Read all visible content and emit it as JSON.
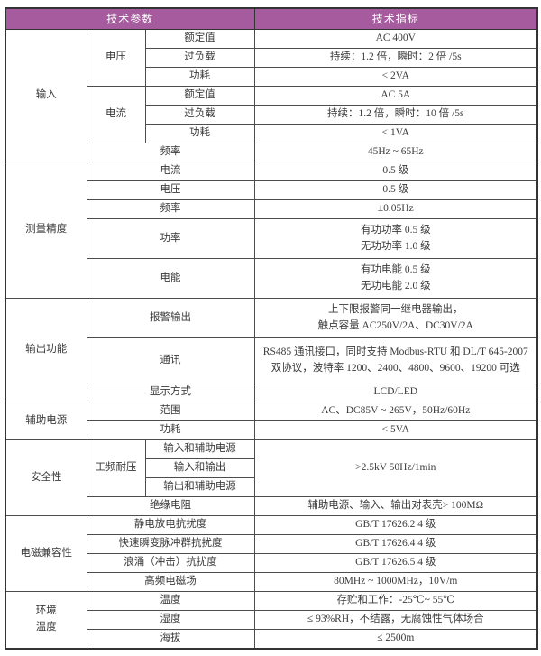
{
  "header": {
    "left": "技术参数",
    "right": "技术指标"
  },
  "colors": {
    "header_bg": "#a55b9e",
    "header_text": "#ffffff",
    "body_text": "#3a3a3a",
    "border": "#4d4d4d"
  },
  "sections": [
    {
      "label": "输入",
      "groups": [
        {
          "label": "电压",
          "rows": [
            {
              "param": "额定值",
              "value": "AC 400V"
            },
            {
              "param": "过负载",
              "value": "持续：1.2 倍，瞬时：2 倍 /5s"
            },
            {
              "param": "功耗",
              "value": "< 2VA"
            }
          ]
        },
        {
          "label": "电流",
          "rows": [
            {
              "param": "额定值",
              "value": "AC 5A"
            },
            {
              "param": "过负载",
              "value": "持续：1.2 倍，瞬时：10 倍 /5s"
            },
            {
              "param": "功耗",
              "value": "< 1VA"
            }
          ]
        }
      ],
      "rows": [
        {
          "param": "频率",
          "value": "45Hz ~ 65Hz"
        }
      ]
    },
    {
      "label": "测量精度",
      "rows": [
        {
          "param": "电流",
          "value": "0.5 级"
        },
        {
          "param": "电压",
          "value": "0.5 级"
        },
        {
          "param": "频率",
          "value": "±0.05Hz"
        },
        {
          "param": "功率",
          "value": "有功功率 0.5 级\n无功功率 1.0 级"
        },
        {
          "param": "电能",
          "value": "有功电能 0.5 级\n无功电能 2.0 级"
        }
      ]
    },
    {
      "label": "输出功能",
      "rows": [
        {
          "param": "报警输出",
          "value": "上下限报警同一继电器输出，\n触点容量 AC250V/2A、DC30V/2A"
        },
        {
          "param": "通讯",
          "value": "RS485 通讯接口，同时支持 Modbus-RTU 和 DL/T 645-2007\n双协议，波特率 1200、2400、4800、9600、19200 可选"
        },
        {
          "param": "显示方式",
          "value": "LCD/LED"
        }
      ]
    },
    {
      "label": "辅助电源",
      "rows": [
        {
          "param": "范围",
          "value": "AC、DC85V ~ 265V，50Hz/60Hz"
        },
        {
          "param": "功耗",
          "value": "< 5VA"
        }
      ]
    },
    {
      "label": "安全性",
      "groups": [
        {
          "label": "工频耐压",
          "rows": [
            {
              "param": "输入和辅助电源"
            },
            {
              "param": "输入和输出"
            },
            {
              "param": "输出和辅助电源"
            }
          ],
          "shared_value": ">2.5kV 50Hz/1min"
        }
      ],
      "rows": [
        {
          "param": "绝缘电阻",
          "value": "辅助电源、输入、输出对表壳> 100MΩ"
        }
      ]
    },
    {
      "label": "电磁兼容性",
      "rows": [
        {
          "param": "静电放电抗扰度",
          "value": "GB/T 17626.2 4 级"
        },
        {
          "param": "快速瞬变脉冲群抗扰度",
          "value": "GB/T 17626.4 4 级"
        },
        {
          "param": "浪涌（冲击）抗扰度",
          "value": "GB/T 17626.5 4 级"
        },
        {
          "param": "高频电磁场",
          "value": "80MHz ~ 1000MHz，10V/m"
        }
      ]
    },
    {
      "label": "环境\n温度",
      "rows": [
        {
          "param": "温度",
          "value": "存贮和工作：-25℃~ 55℃"
        },
        {
          "param": "湿度",
          "value": "≤ 93%RH，不结露，无腐蚀性气体场合"
        },
        {
          "param": "海拔",
          "value": "≤ 2500m"
        }
      ]
    }
  ]
}
